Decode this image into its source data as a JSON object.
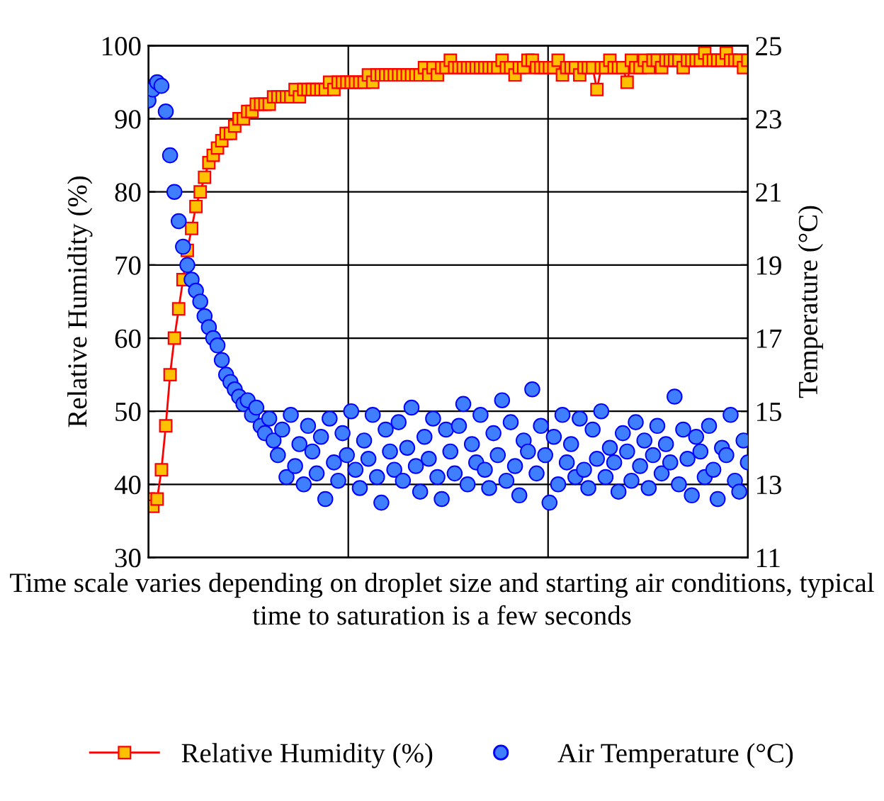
{
  "chart_data": {
    "type": "line",
    "xlabel": "Time scale varies depending on droplet size and starting air conditions, typical time to saturation is a few seconds",
    "ylabel": "Relative Humidity (%)",
    "y2label": "Temperature (°C)",
    "categories": [
      null,
      null,
      null,
      null,
      null,
      null,
      null,
      null,
      null,
      null,
      null,
      null,
      null,
      null,
      null,
      null,
      null,
      null,
      null,
      null,
      null,
      null,
      null,
      null,
      null,
      null,
      null,
      null,
      null,
      null,
      null,
      null,
      null,
      null,
      null,
      null,
      null,
      null,
      null,
      null,
      null,
      null,
      null,
      null,
      null,
      null,
      null,
      null,
      null,
      null,
      null,
      null,
      null,
      null,
      null,
      null,
      null,
      null,
      null,
      null,
      null,
      null,
      null,
      null,
      null,
      null,
      null,
      null,
      null,
      null,
      null,
      null,
      null,
      null,
      null,
      null,
      null,
      null,
      null,
      null,
      null,
      null,
      null,
      null,
      null,
      null,
      null,
      null,
      null,
      null,
      null,
      null,
      null,
      null,
      null,
      null,
      null,
      null,
      null,
      null,
      null,
      null,
      null,
      null,
      null,
      null,
      null,
      null,
      null,
      null,
      null,
      null,
      null,
      null,
      null,
      null,
      null,
      null,
      null,
      null,
      null,
      null,
      null,
      null,
      null,
      null,
      null,
      null,
      null,
      null,
      null,
      null,
      null,
      null,
      null,
      null,
      null,
      null,
      null,
      null
    ],
    "ylim": [
      30,
      100
    ],
    "yticks": [
      30,
      40,
      50,
      60,
      70,
      80,
      90,
      100
    ],
    "y2lim": [
      11,
      25
    ],
    "y2ticks": [
      11,
      13,
      15,
      17,
      19,
      21,
      23,
      25
    ],
    "grid": true,
    "legend": "bottom",
    "tick_labels": "y",
    "series": [
      {
        "name": "Relative Humidity (%)",
        "marker": "square",
        "color": "#ff0000",
        "values": [
          38,
          37,
          38,
          42,
          48,
          55,
          60,
          64,
          68,
          72,
          75,
          78,
          80,
          82,
          84,
          85,
          86,
          87,
          88,
          88,
          89,
          90,
          90,
          91,
          91,
          92,
          92,
          92,
          92,
          93,
          93,
          93,
          93,
          93,
          94,
          93,
          94,
          94,
          94,
          94,
          94,
          94,
          95,
          94,
          95,
          95,
          95,
          95,
          95,
          95,
          95,
          96,
          95,
          96,
          96,
          96,
          96,
          96,
          96,
          96,
          96,
          96,
          96,
          96,
          97,
          96,
          97,
          96,
          97,
          97,
          98,
          97,
          97,
          97,
          97,
          97,
          97,
          97,
          97,
          97,
          97,
          97,
          98,
          97,
          97,
          96,
          97,
          97,
          98,
          98,
          97,
          97,
          97,
          97,
          97,
          98,
          96,
          97,
          97,
          97,
          96,
          97,
          97,
          97,
          94,
          97,
          97,
          98,
          97,
          97,
          97,
          95,
          98,
          97,
          97,
          98,
          97,
          98,
          98,
          97,
          98,
          98,
          98,
          98,
          97,
          98,
          98,
          98,
          98,
          99,
          98,
          98,
          98,
          98,
          99,
          98,
          98,
          98,
          97,
          98
        ]
      },
      {
        "name": "Air Temperature (°C)",
        "type": "scatter",
        "marker": "circle",
        "axis": "y2",
        "color": "#3f7fff",
        "values": [
          23.5,
          23.8,
          24.0,
          23.9,
          23.2,
          22.0,
          21.0,
          20.2,
          19.5,
          19.0,
          18.6,
          18.3,
          18.0,
          17.6,
          17.3,
          17.0,
          16.8,
          16.4,
          16.0,
          15.8,
          15.6,
          15.4,
          15.2,
          15.3,
          14.9,
          15.1,
          14.6,
          14.4,
          14.8,
          14.2,
          13.8,
          14.5,
          13.2,
          14.9,
          13.5,
          14.1,
          13.0,
          14.6,
          13.9,
          13.3,
          14.3,
          12.6,
          14.8,
          13.6,
          13.1,
          14.4,
          13.8,
          15.0,
          13.4,
          12.9,
          14.2,
          13.7,
          14.9,
          13.2,
          12.5,
          14.5,
          13.9,
          13.4,
          14.7,
          13.1,
          14.0,
          15.1,
          13.5,
          12.8,
          14.3,
          13.7,
          14.8,
          13.2,
          12.6,
          14.5,
          13.9,
          13.3,
          14.6,
          15.2,
          13.0,
          14.1,
          13.6,
          14.9,
          13.4,
          12.9,
          14.4,
          13.8,
          15.3,
          13.1,
          14.7,
          13.5,
          12.7,
          14.2,
          13.9,
          15.6,
          13.3,
          14.6,
          13.8,
          12.5,
          14.3,
          13.0,
          14.9,
          13.6,
          14.1,
          13.2,
          14.8,
          13.4,
          12.9,
          14.5,
          13.7,
          15.0,
          13.2,
          14.0,
          13.6,
          12.8,
          14.4,
          13.9,
          13.1,
          14.7,
          13.5,
          14.2,
          12.9,
          13.8,
          14.6,
          13.3,
          14.1,
          13.6,
          15.4,
          13.0,
          14.5,
          13.7,
          12.7,
          14.3,
          13.9,
          13.2,
          14.6,
          13.4,
          12.6,
          14.0,
          13.8,
          14.9,
          13.1,
          12.8,
          14.2,
          13.6
        ]
      }
    ]
  }
}
